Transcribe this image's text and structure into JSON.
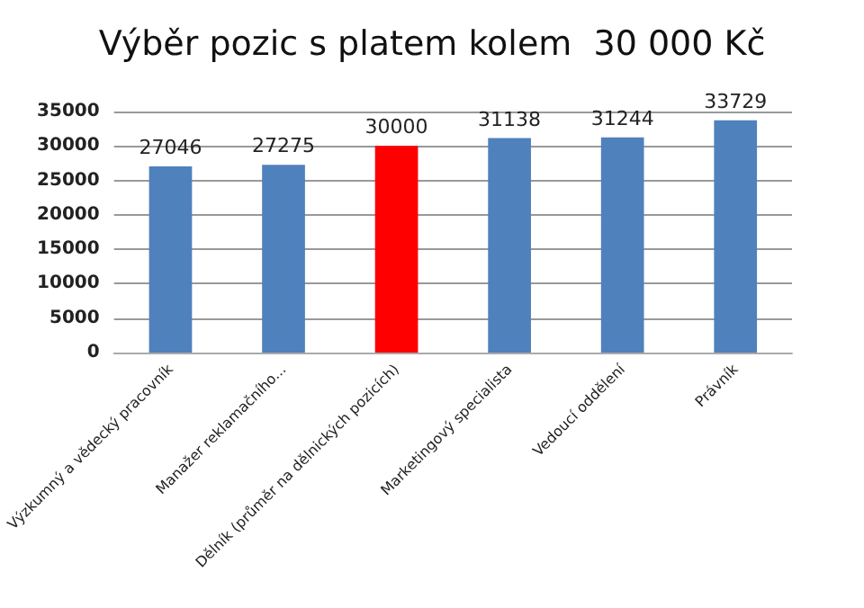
{
  "chart_data": {
    "type": "bar",
    "title": "Výběr pozic s platem kolem  30 000 Kč",
    "categories": [
      "Výzkumný a vědecký pracovník",
      "Manažer reklamačního...",
      "Dělník (průměr na dělnických pozicích)",
      "Marketingový specialista",
      "Vedoucí oddělení",
      "Právník"
    ],
    "values": [
      27046,
      27275,
      30000,
      31138,
      31244,
      33729
    ],
    "colors": [
      "#4f81bd",
      "#4f81bd",
      "#ff0000",
      "#4f81bd",
      "#4f81bd",
      "#4f81bd"
    ],
    "ylim": [
      0,
      35000
    ],
    "yticks": [
      0,
      5000,
      10000,
      15000,
      20000,
      25000,
      30000,
      35000
    ],
    "grid": "y",
    "data_labels": true
  }
}
